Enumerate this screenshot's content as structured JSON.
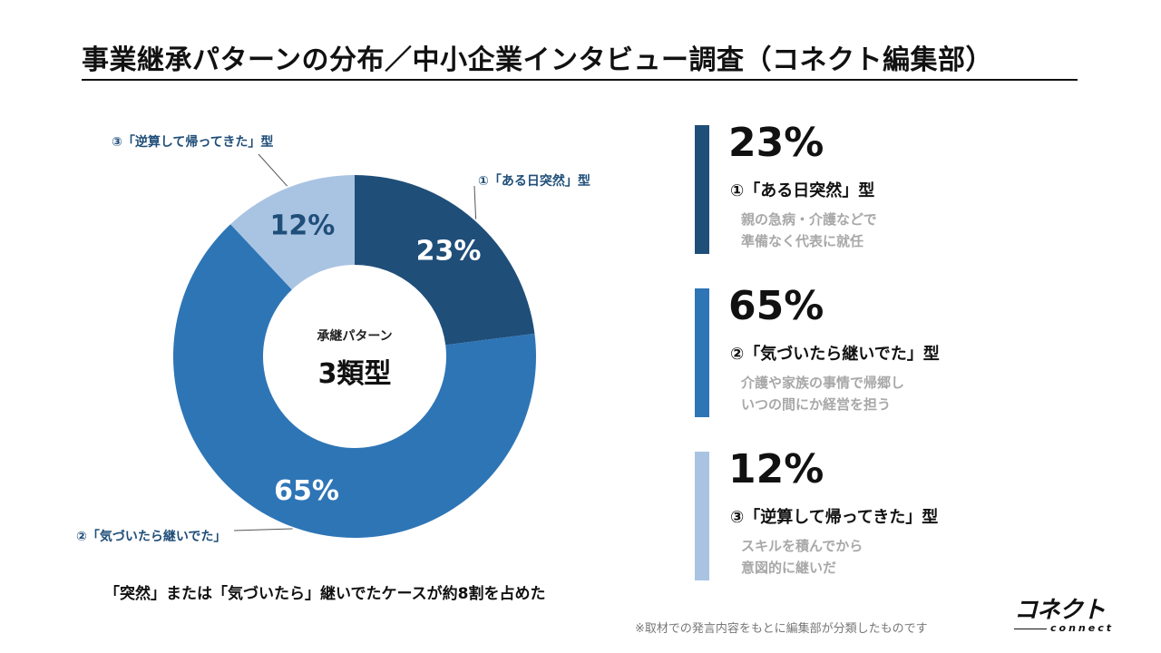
{
  "title": "事業継承パターンの分布／中小企業インタビュー調査（コネクト編集部）",
  "center": {
    "label": "承継パターン",
    "value": "3類型"
  },
  "chart_data": {
    "type": "pie",
    "title": "事業継承パターンの分布／中小企業インタビュー調査（コネクト編集部）",
    "categories": [
      "①「ある日突然」型",
      "②「気づいたら継いでた」型",
      "③「逆算して帰ってきた」型"
    ],
    "values": [
      23,
      65,
      12
    ],
    "unit": "%",
    "slice_labels": [
      "23%",
      "65%",
      "12%"
    ],
    "outer_labels": [
      "①「ある日突然」型",
      "②「気づいたら継いでた」",
      "③「逆算して帰ってきた」型"
    ],
    "colors": [
      "#1f4e79",
      "#2e75b6",
      "#a9c4e2"
    ],
    "slice_text_colors": [
      "#ffffff",
      "#ffffff",
      "#1f4e79"
    ]
  },
  "cards": [
    {
      "pct": "23%",
      "name": "①「ある日突然」型",
      "desc1": "親の急病・介護などで",
      "desc2": "準備なく代表に就任",
      "color": "#1f4e79"
    },
    {
      "pct": "65%",
      "name": "②「気づいたら継いでた」型",
      "desc1": "介護や家族の事情で帰郷し",
      "desc2": "いつの間にか経営を担う",
      "color": "#2e75b6"
    },
    {
      "pct": "12%",
      "name": "③「逆算して帰ってきた」型",
      "desc1": "スキルを積んでから",
      "desc2": "意図的に継いだ",
      "color": "#a9c4e2"
    }
  ],
  "caption": "「突然」または「気づいたら」継いでたケースが約8割を占めた",
  "footnote": "※取材での発言内容をもとに編集部が分類したものです",
  "logo": {
    "main": "コネクト",
    "sub": "connect"
  }
}
